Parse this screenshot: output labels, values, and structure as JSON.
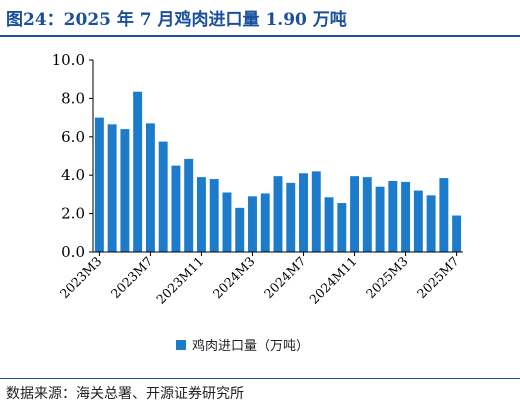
{
  "header": {
    "title": "图24：2025 年 7 月鸡肉进口量 1.90 万吨"
  },
  "source": "数据来源：海关总署、开源证券研究所",
  "colors": {
    "bar": "#1c7ccb",
    "accent": "#1a4f9c",
    "axis": "#000000"
  },
  "chart_data": {
    "type": "bar",
    "categories": [
      "2023M3",
      "2023M4",
      "2023M5",
      "2023M6",
      "2023M7",
      "2023M8",
      "2023M9",
      "2023M10",
      "2023M11",
      "2023M12",
      "2024M1",
      "2024M2",
      "2024M3",
      "2024M4",
      "2024M5",
      "2024M6",
      "2024M7",
      "2024M8",
      "2024M9",
      "2024M10",
      "2024M11",
      "2024M12",
      "2025M1",
      "2025M2",
      "2025M3",
      "2025M4",
      "2025M5",
      "2025M6",
      "2025M7"
    ],
    "tick_labels": [
      "2023M3",
      "2023M7",
      "2023M11",
      "2024M3",
      "2024M7",
      "2024M11",
      "2025M3",
      "2025M7"
    ],
    "series": [
      {
        "name": "鸡肉进口量（万吨）",
        "values": [
          7.0,
          6.65,
          6.4,
          8.35,
          6.7,
          5.75,
          4.5,
          4.85,
          3.9,
          3.8,
          3.1,
          2.3,
          2.9,
          3.05,
          3.95,
          3.6,
          4.1,
          4.2,
          2.85,
          2.55,
          3.95,
          3.9,
          3.4,
          3.7,
          3.65,
          3.2,
          2.95,
          3.85,
          1.9
        ]
      }
    ],
    "yticks": [
      "0.0",
      "2.0",
      "4.0",
      "6.0",
      "8.0",
      "10.0"
    ],
    "ylim": [
      0,
      10
    ],
    "legend_position": "bottom",
    "grid": false
  }
}
